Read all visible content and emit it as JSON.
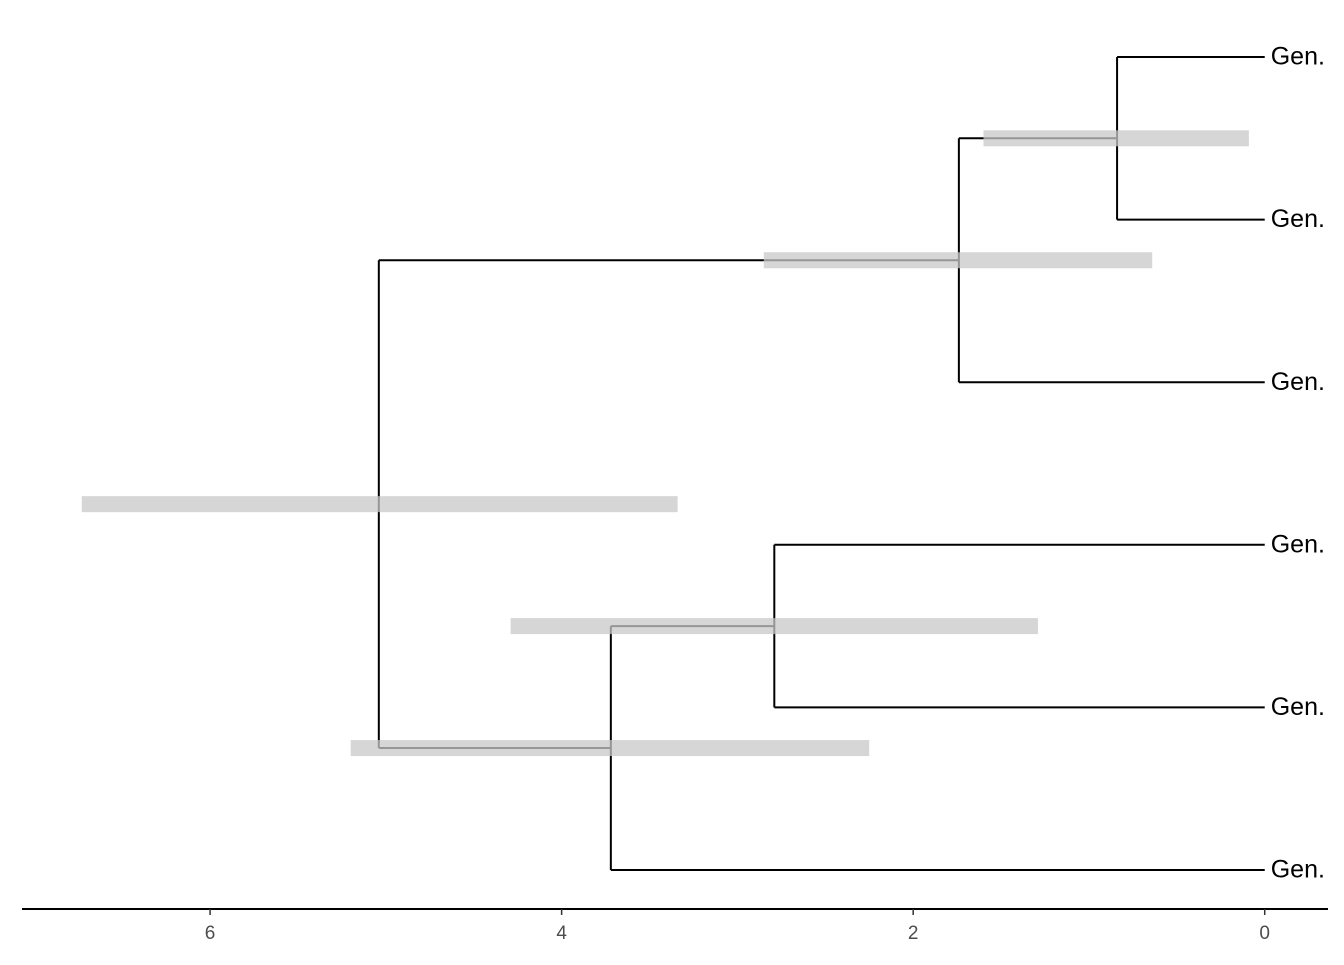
{
  "chart_data": {
    "type": "tree",
    "nodes": [
      {
        "label": "Gen.",
        "age": 0
      },
      {
        "label": "Gen.",
        "age": 0
      },
      {
        "label": "Gen.",
        "age": 0
      },
      {
        "label": "Gen.",
        "age": 0
      },
      {
        "label": "Gen.",
        "age": 0
      },
      {
        "label": "Gen.",
        "age": 0
      },
      {
        "age": 0.84,
        "hpd": [
          1.6,
          0.09
        ],
        "children": [
          0,
          1
        ]
      },
      {
        "age": 1.74,
        "hpd": [
          2.85,
          0.64
        ],
        "children": [
          6,
          2
        ]
      },
      {
        "age": 2.79,
        "hpd": [
          4.29,
          1.29
        ],
        "children": [
          3,
          4
        ]
      },
      {
        "age": 3.72,
        "hpd": [
          5.2,
          2.25
        ],
        "children": [
          8,
          5
        ]
      },
      {
        "age": 5.04,
        "hpd": [
          6.73,
          3.34
        ],
        "children": [
          7,
          9
        ]
      }
    ],
    "hpd_color": "#c8c8c8",
    "branch_color": "#000000",
    "xlim": [
      7.07,
      -0.36
    ],
    "xticks": [
      6,
      4,
      2,
      0
    ]
  }
}
